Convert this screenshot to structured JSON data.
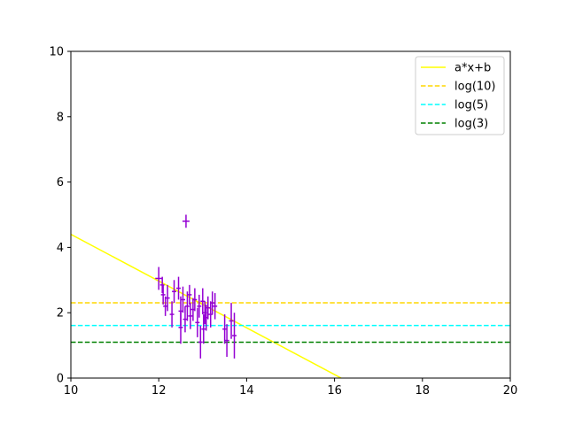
{
  "chart_data": {
    "type": "scatter",
    "title": "",
    "xlabel": "",
    "ylabel": "",
    "xlim": [
      10,
      20
    ],
    "ylim": [
      0,
      10
    ],
    "xticks": [
      "10",
      "12",
      "14",
      "16",
      "18",
      "20"
    ],
    "yticks": [
      "0",
      "2",
      "4",
      "6",
      "8",
      "10"
    ],
    "grid": false,
    "legend_position": "top-right",
    "series": [
      {
        "name": "a*x+b",
        "kind": "line",
        "color": "#ffff00",
        "style": "solid",
        "x": [
          10,
          16.15
        ],
        "y": [
          4.4,
          0
        ]
      },
      {
        "name": "log(10)",
        "kind": "hline",
        "color": "#ffd700",
        "style": "dashed",
        "y": 2.3026
      },
      {
        "name": "log(5)",
        "kind": "hline",
        "color": "#00ffff",
        "style": "dashed",
        "y": 1.6094
      },
      {
        "name": "log(3)",
        "kind": "hline",
        "color": "#008000",
        "style": "dashed",
        "y": 1.0986
      }
    ],
    "errorbar_series": {
      "color": "#9400d3",
      "points": [
        {
          "x": 12.0,
          "y": 3.05,
          "xerr": 0.08,
          "yerr": 0.35
        },
        {
          "x": 12.08,
          "y": 2.85,
          "xerr": 0.05,
          "yerr": 0.25
        },
        {
          "x": 12.1,
          "y": 2.55,
          "xerr": 0.05,
          "yerr": 0.3
        },
        {
          "x": 12.15,
          "y": 2.2,
          "xerr": 0.05,
          "yerr": 0.3
        },
        {
          "x": 12.2,
          "y": 2.45,
          "xerr": 0.05,
          "yerr": 0.4
        },
        {
          "x": 12.3,
          "y": 1.95,
          "xerr": 0.05,
          "yerr": 0.4
        },
        {
          "x": 12.35,
          "y": 2.65,
          "xerr": 0.05,
          "yerr": 0.35
        },
        {
          "x": 12.45,
          "y": 2.75,
          "xerr": 0.05,
          "yerr": 0.35
        },
        {
          "x": 12.5,
          "y": 2.05,
          "xerr": 0.05,
          "yerr": 0.45
        },
        {
          "x": 12.5,
          "y": 1.55,
          "xerr": 0.05,
          "yerr": 0.5
        },
        {
          "x": 12.55,
          "y": 2.4,
          "xerr": 0.05,
          "yerr": 0.4
        },
        {
          "x": 12.6,
          "y": 1.8,
          "xerr": 0.05,
          "yerr": 0.4
        },
        {
          "x": 12.62,
          "y": 4.8,
          "xerr": 0.08,
          "yerr": 0.2
        },
        {
          "x": 12.65,
          "y": 2.2,
          "xerr": 0.05,
          "yerr": 0.45
        },
        {
          "x": 12.7,
          "y": 2.55,
          "xerr": 0.05,
          "yerr": 0.3
        },
        {
          "x": 12.72,
          "y": 1.9,
          "xerr": 0.05,
          "yerr": 0.4
        },
        {
          "x": 12.78,
          "y": 2.1,
          "xerr": 0.05,
          "yerr": 0.35
        },
        {
          "x": 12.82,
          "y": 2.4,
          "xerr": 0.05,
          "yerr": 0.35
        },
        {
          "x": 12.88,
          "y": 1.7,
          "xerr": 0.05,
          "yerr": 0.45
        },
        {
          "x": 12.92,
          "y": 2.2,
          "xerr": 0.05,
          "yerr": 0.35
        },
        {
          "x": 12.95,
          "y": 1.1,
          "xerr": 0.05,
          "yerr": 0.5
        },
        {
          "x": 13.0,
          "y": 2.35,
          "xerr": 0.05,
          "yerr": 0.4
        },
        {
          "x": 13.02,
          "y": 1.5,
          "xerr": 0.05,
          "yerr": 0.45
        },
        {
          "x": 13.05,
          "y": 2.0,
          "xerr": 0.05,
          "yerr": 0.35
        },
        {
          "x": 13.08,
          "y": 1.85,
          "xerr": 0.05,
          "yerr": 0.4
        },
        {
          "x": 13.12,
          "y": 2.15,
          "xerr": 0.05,
          "yerr": 0.35
        },
        {
          "x": 13.18,
          "y": 1.95,
          "xerr": 0.05,
          "yerr": 0.4
        },
        {
          "x": 13.22,
          "y": 2.3,
          "xerr": 0.05,
          "yerr": 0.35
        },
        {
          "x": 13.28,
          "y": 2.2,
          "xerr": 0.05,
          "yerr": 0.4
        },
        {
          "x": 13.5,
          "y": 1.5,
          "xerr": 0.05,
          "yerr": 0.45
        },
        {
          "x": 13.55,
          "y": 1.15,
          "xerr": 0.05,
          "yerr": 0.5
        },
        {
          "x": 13.65,
          "y": 1.75,
          "xerr": 0.05,
          "yerr": 0.55
        },
        {
          "x": 13.72,
          "y": 1.3,
          "xerr": 0.05,
          "yerr": 0.7
        }
      ]
    }
  }
}
